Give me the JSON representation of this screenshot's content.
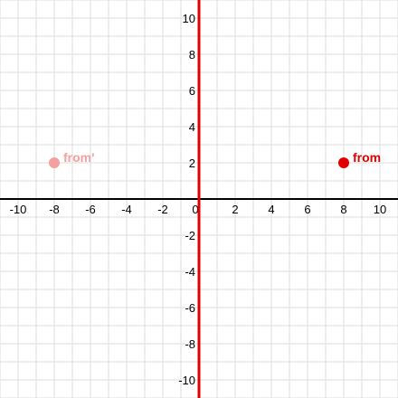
{
  "chart_data": {
    "type": "scatter",
    "xlim": [
      -11,
      11
    ],
    "ylim": [
      -11,
      11
    ],
    "grid": true,
    "minor_grid_step": 1,
    "x_ticks": [
      -10,
      -8,
      -6,
      -4,
      -2,
      0,
      2,
      4,
      6,
      8,
      10
    ],
    "y_ticks": [
      -10,
      -8,
      -6,
      -4,
      -2,
      2,
      4,
      6,
      8,
      10
    ],
    "reflection_line": {
      "equation": "x = 0",
      "color": "#e00000"
    },
    "points": [
      {
        "label": "from",
        "x": 8,
        "y": 2,
        "color": "#e00000"
      },
      {
        "label": "from'",
        "x": -8,
        "y": 2,
        "color": "#f4a0a0"
      }
    ],
    "colors": {
      "grid": "#dddddd",
      "axis": "#000000"
    }
  }
}
